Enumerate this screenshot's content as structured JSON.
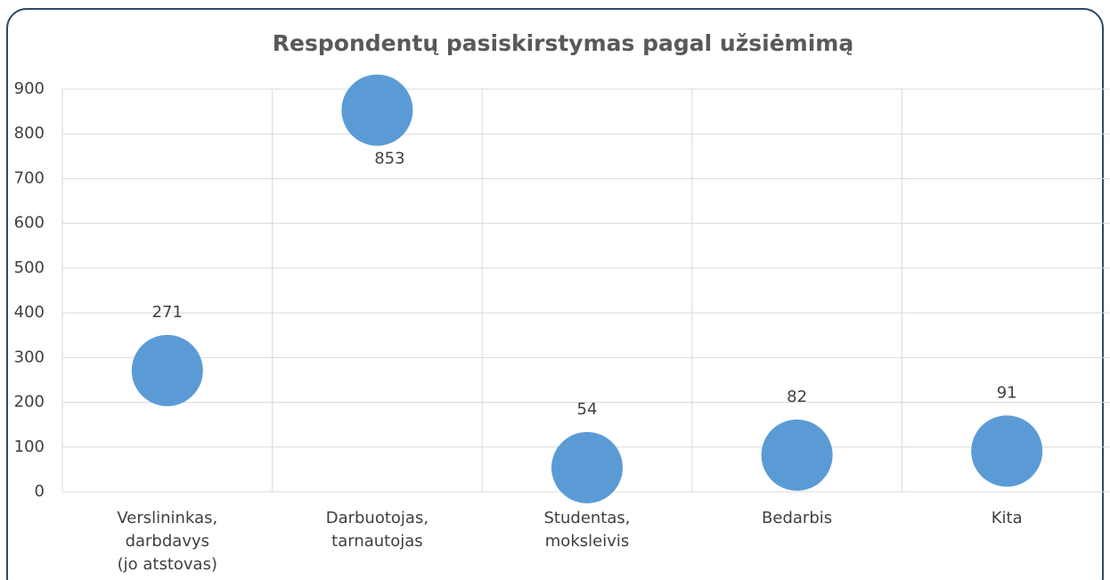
{
  "chart_data": {
    "type": "scatter",
    "title": "Respondentų pasiskirstymas pagal užsiėmimą",
    "categories": [
      [
        "Verslininkas,",
        "darbdavys",
        "(jo atstovas)"
      ],
      [
        "Darbuotojas,",
        "tarnautojas"
      ],
      [
        "Studentas,",
        "moksleivis"
      ],
      [
        "Bedarbis"
      ],
      [
        "Kita"
      ]
    ],
    "values": [
      271,
      853,
      54,
      82,
      91
    ],
    "label_positions": [
      "above",
      "below",
      "above",
      "above",
      "above"
    ],
    "color": "#5b9bd5",
    "ylim": [
      0,
      900
    ],
    "yticks": [
      0,
      100,
      200,
      300,
      400,
      500,
      600,
      700,
      800,
      900
    ],
    "grid": true
  }
}
